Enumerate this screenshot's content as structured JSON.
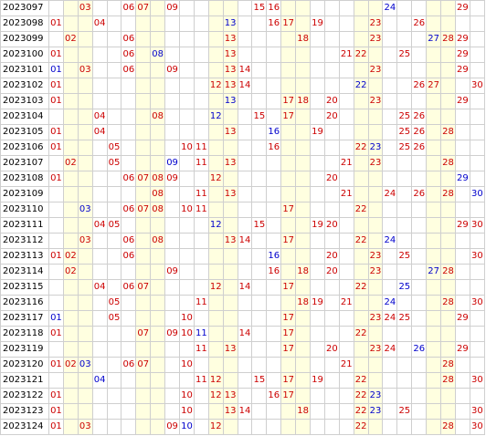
{
  "colors": {
    "red_number": "#cc0000",
    "blue_number": "#0000cc",
    "highlight_column": "#ffffe0",
    "grid_line": "#cfcfcf"
  },
  "highlight_columns": [
    2,
    3,
    7,
    8,
    12,
    13,
    17,
    18,
    22,
    23,
    27,
    28
  ],
  "rows": [
    {
      "issue": "2023097",
      "red": [
        3,
        6,
        7,
        9,
        15,
        16,
        29
      ],
      "blue": [
        24
      ]
    },
    {
      "issue": "2023098",
      "red": [
        1,
        4,
        16,
        17,
        19,
        23,
        26
      ],
      "blue": [
        13
      ]
    },
    {
      "issue": "2023099",
      "red": [
        2,
        6,
        13,
        18,
        23,
        28,
        29
      ],
      "blue": [
        27
      ]
    },
    {
      "issue": "2023100",
      "red": [
        1,
        6,
        13,
        21,
        22,
        25,
        29
      ],
      "blue": [
        8
      ]
    },
    {
      "issue": "2023101",
      "red": [
        3,
        6,
        9,
        13,
        14,
        23,
        29
      ],
      "blue": [
        1
      ]
    },
    {
      "issue": "2023102",
      "red": [
        1,
        12,
        13,
        14,
        26,
        27,
        30
      ],
      "blue": [
        22
      ]
    },
    {
      "issue": "2023103",
      "red": [
        1,
        17,
        18,
        20,
        23,
        29
      ],
      "blue": [
        13
      ]
    },
    {
      "issue": "2023104",
      "red": [
        4,
        8,
        15,
        17,
        20,
        25,
        26
      ],
      "blue": [
        12
      ]
    },
    {
      "issue": "2023105",
      "red": [
        1,
        4,
        13,
        19,
        25,
        26,
        28
      ],
      "blue": [
        16
      ]
    },
    {
      "issue": "2023106",
      "red": [
        1,
        5,
        10,
        11,
        16,
        22,
        25,
        26
      ],
      "blue": [
        23
      ]
    },
    {
      "issue": "2023107",
      "red": [
        2,
        5,
        11,
        13,
        21,
        23,
        28
      ],
      "blue": [
        9
      ]
    },
    {
      "issue": "2023108",
      "red": [
        1,
        6,
        7,
        8,
        9,
        12,
        20
      ],
      "blue": [
        29
      ]
    },
    {
      "issue": "2023109",
      "red": [
        8,
        11,
        13,
        21,
        24,
        26,
        28
      ],
      "blue": [
        30
      ]
    },
    {
      "issue": "2023110",
      "red": [
        6,
        7,
        8,
        10,
        11,
        17,
        22
      ],
      "blue": [
        3
      ]
    },
    {
      "issue": "2023111",
      "red": [
        4,
        5,
        15,
        19,
        20,
        29,
        30
      ],
      "blue": [
        12
      ]
    },
    {
      "issue": "2023112",
      "red": [
        3,
        6,
        8,
        13,
        14,
        17,
        22
      ],
      "blue": [
        24
      ]
    },
    {
      "issue": "2023113",
      "red": [
        1,
        2,
        6,
        20,
        23,
        25,
        30
      ],
      "blue": [
        16
      ]
    },
    {
      "issue": "2023114",
      "red": [
        2,
        9,
        16,
        18,
        20,
        23,
        28
      ],
      "blue": [
        27
      ]
    },
    {
      "issue": "2023115",
      "red": [
        4,
        6,
        7,
        12,
        14,
        17,
        22
      ],
      "blue": [
        25
      ]
    },
    {
      "issue": "2023116",
      "red": [
        5,
        11,
        18,
        19,
        21,
        28,
        30
      ],
      "blue": [
        24
      ]
    },
    {
      "issue": "2023117",
      "red": [
        5,
        10,
        17,
        23,
        24,
        25,
        29
      ],
      "blue": [
        1
      ]
    },
    {
      "issue": "2023118",
      "red": [
        1,
        7,
        9,
        10,
        14,
        17,
        22
      ],
      "blue": [
        11
      ]
    },
    {
      "issue": "2023119",
      "red": [
        11,
        13,
        17,
        20,
        23,
        24,
        29
      ],
      "blue": [
        26
      ]
    },
    {
      "issue": "2023120",
      "red": [
        1,
        2,
        6,
        7,
        10,
        21,
        28
      ],
      "blue": [
        3
      ]
    },
    {
      "issue": "2023121",
      "red": [
        11,
        12,
        15,
        17,
        19,
        22,
        28,
        30
      ],
      "blue": [
        4
      ]
    },
    {
      "issue": "2023122",
      "red": [
        1,
        10,
        12,
        13,
        16,
        17,
        22
      ],
      "blue": [
        23
      ]
    },
    {
      "issue": "2023123",
      "red": [
        1,
        10,
        13,
        14,
        18,
        22,
        25,
        30
      ],
      "blue": [
        23
      ]
    },
    {
      "issue": "2023124",
      "red": [
        1,
        3,
        9,
        12,
        22,
        28,
        30
      ],
      "blue": [
        10
      ]
    }
  ]
}
